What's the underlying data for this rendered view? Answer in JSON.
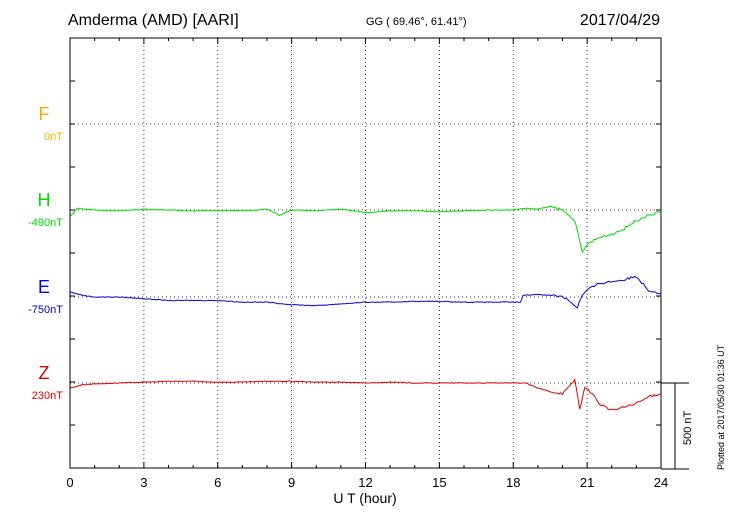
{
  "header": {
    "station": "Amderma (AMD)  [AARI]",
    "coords": "GG ( 69.46°,  61.41°)",
    "date": "2017/04/29"
  },
  "footer_note": "Plotted at 2017/05/30 01:36 UT",
  "scale_bar": {
    "label": "500 nT",
    "value_nT": 500
  },
  "chart_data": {
    "type": "line",
    "xlabel": "U T (hour)",
    "xlim": [
      0,
      24
    ],
    "xticks": [
      "0",
      "3",
      "6",
      "9",
      "12",
      "15",
      "18",
      "21",
      "24"
    ],
    "grid": true,
    "channels": [
      {
        "name": "F",
        "baseline": "0nT",
        "color": "#ffaa00",
        "values": []
      },
      {
        "name": "H",
        "baseline": "-490nT",
        "color": "#00dd00",
        "values": [
          [
            0,
            -40
          ],
          [
            0.3,
            10
          ],
          [
            1,
            0
          ],
          [
            2,
            -5
          ],
          [
            3,
            5
          ],
          [
            4,
            0
          ],
          [
            5,
            -5
          ],
          [
            6,
            -3
          ],
          [
            7,
            -5
          ],
          [
            8,
            5
          ],
          [
            8.5,
            -30
          ],
          [
            9,
            0
          ],
          [
            10,
            -5
          ],
          [
            11,
            5
          ],
          [
            12,
            -15
          ],
          [
            13,
            -5
          ],
          [
            14,
            -5
          ],
          [
            15,
            -10
          ],
          [
            16,
            -5
          ],
          [
            17,
            0
          ],
          [
            18,
            0
          ],
          [
            18.5,
            10
          ],
          [
            19,
            5
          ],
          [
            19.5,
            20
          ],
          [
            20,
            0
          ],
          [
            20.5,
            -60
          ],
          [
            20.8,
            -250
          ],
          [
            21,
            -200
          ],
          [
            21.5,
            -160
          ],
          [
            22,
            -140
          ],
          [
            22.5,
            -110
          ],
          [
            23,
            -60
          ],
          [
            23.5,
            -30
          ],
          [
            24,
            -10
          ]
        ]
      },
      {
        "name": "E",
        "baseline": "-750nT",
        "color": "#0000dd",
        "values": [
          [
            0,
            30
          ],
          [
            0.5,
            10
          ],
          [
            1,
            0
          ],
          [
            2,
            0
          ],
          [
            3,
            -10
          ],
          [
            4,
            -20
          ],
          [
            6,
            -20
          ],
          [
            7,
            -30
          ],
          [
            8,
            -30
          ],
          [
            9,
            -45
          ],
          [
            10,
            -50
          ],
          [
            11,
            -40
          ],
          [
            12,
            -30
          ],
          [
            13,
            -30
          ],
          [
            14,
            -25
          ],
          [
            15,
            -25
          ],
          [
            16,
            -30
          ],
          [
            17,
            -30
          ],
          [
            18,
            -30
          ],
          [
            18.3,
            -30
          ],
          [
            18.4,
            10
          ],
          [
            19,
            15
          ],
          [
            20,
            5
          ],
          [
            20.3,
            -25
          ],
          [
            20.6,
            -60
          ],
          [
            20.8,
            10
          ],
          [
            21,
            40
          ],
          [
            21.5,
            80
          ],
          [
            22,
            90
          ],
          [
            22.5,
            100
          ],
          [
            23,
            120
          ],
          [
            23.5,
            40
          ],
          [
            24,
            20
          ]
        ]
      },
      {
        "name": "Z",
        "baseline": "230nT",
        "color": "#dd0000",
        "values": [
          [
            0,
            -30
          ],
          [
            0.5,
            -10
          ],
          [
            1,
            -5
          ],
          [
            2,
            0
          ],
          [
            3,
            5
          ],
          [
            4,
            10
          ],
          [
            5,
            10
          ],
          [
            6,
            5
          ],
          [
            7,
            5
          ],
          [
            8,
            10
          ],
          [
            9,
            10
          ],
          [
            10,
            5
          ],
          [
            11,
            5
          ],
          [
            12,
            0
          ],
          [
            13,
            5
          ],
          [
            14,
            0
          ],
          [
            15,
            0
          ],
          [
            16,
            0
          ],
          [
            17,
            0
          ],
          [
            18,
            0
          ],
          [
            18.5,
            0
          ],
          [
            19,
            -30
          ],
          [
            19.5,
            -50
          ],
          [
            20,
            -60
          ],
          [
            20.3,
            -20
          ],
          [
            20.5,
            20
          ],
          [
            20.7,
            -150
          ],
          [
            20.9,
            -30
          ],
          [
            21.2,
            -60
          ],
          [
            21.5,
            -120
          ],
          [
            22,
            -160
          ],
          [
            22.5,
            -140
          ],
          [
            23,
            -120
          ],
          [
            23.5,
            -80
          ],
          [
            24,
            -60
          ]
        ]
      }
    ]
  }
}
